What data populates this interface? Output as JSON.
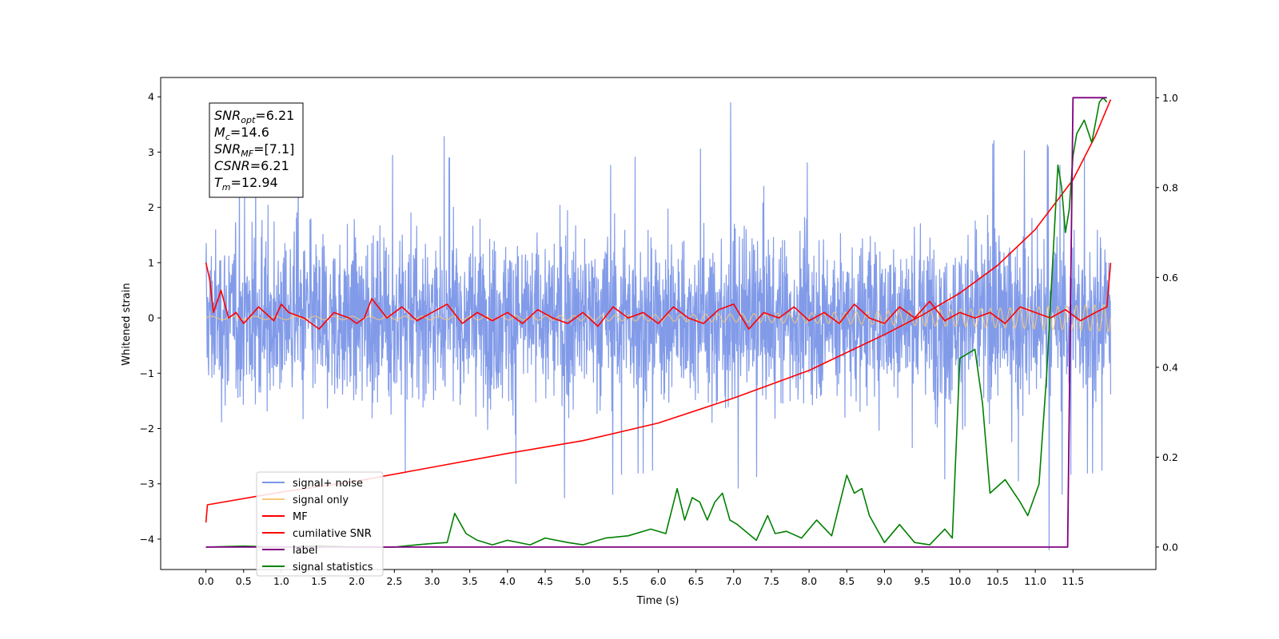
{
  "chart_data": {
    "type": "line",
    "xlabel": "Time (s)",
    "ylabel": "Whitened strain",
    "x_ticks": [
      0.0,
      0.5,
      1.0,
      1.5,
      2.0,
      2.5,
      3.0,
      3.5,
      4.0,
      4.5,
      5.0,
      5.5,
      6.0,
      6.5,
      7.0,
      7.5,
      8.0,
      8.5,
      9.0,
      9.5,
      10.0,
      10.5,
      11.0,
      11.5
    ],
    "xlim": [
      -0.6,
      12.6
    ],
    "y_ticks": [
      4,
      3,
      2,
      1,
      0,
      -1,
      -2,
      -3,
      -4
    ],
    "ylim": [
      -4.55,
      4.35
    ],
    "y2_ticks": [
      1.0,
      0.8,
      0.6,
      0.4,
      0.2,
      0.0
    ],
    "y2lim": [
      -0.05,
      1.045
    ],
    "info_box": {
      "lines": [
        {
          "base": "SNR",
          "sub": "opt",
          "value": "=6.21"
        },
        {
          "base": "M",
          "sub": "c",
          "value": "=14.6"
        },
        {
          "base": "SNR",
          "sub": "MF",
          "value": "=[7.1]"
        },
        {
          "base": "CSNR",
          "sub": "",
          "value": "=6.21"
        },
        {
          "base": "T",
          "sub": "m",
          "value": "=12.94"
        }
      ]
    },
    "legend": {
      "placement": "lower-left",
      "entries": [
        {
          "label": "signal+ noise",
          "color": "#7b96e8"
        },
        {
          "label": "signal only",
          "color": "#f5c879"
        },
        {
          "label": "MF",
          "color": "#ff0000"
        },
        {
          "label": "cumilative SNR",
          "color": "#ff0000"
        },
        {
          "label": "label",
          "color": "#800080"
        },
        {
          "label": "signal statistics",
          "color": "#008000"
        }
      ]
    },
    "series": [
      {
        "name": "signal+ noise",
        "axis": "left",
        "color": "#7b96e8",
        "x_range": [
          0.0,
          12.0
        ],
        "envelope_upper": 2.6,
        "envelope_lower": -2.6,
        "max": 3.9,
        "min": -4.2
      },
      {
        "name": "signal only",
        "axis": "left",
        "color": "#f5c879",
        "x_range": [
          0.0,
          12.0
        ],
        "amplitude_start": 0.03,
        "amplitude_end": 0.25
      },
      {
        "name": "MF",
        "axis": "left",
        "color": "#ff0000",
        "x": [
          0.0,
          0.05,
          0.1,
          0.2,
          0.3,
          0.4,
          0.5,
          0.7,
          0.9,
          1.0,
          1.1,
          1.3,
          1.5,
          1.7,
          1.9,
          2.0,
          2.1,
          2.2,
          2.4,
          2.6,
          2.8,
          3.0,
          3.2,
          3.4,
          3.6,
          3.8,
          4.0,
          4.2,
          4.4,
          4.6,
          4.8,
          5.0,
          5.2,
          5.4,
          5.6,
          5.8,
          6.0,
          6.2,
          6.4,
          6.6,
          6.8,
          7.0,
          7.2,
          7.4,
          7.6,
          7.8,
          8.0,
          8.2,
          8.4,
          8.6,
          8.8,
          9.0,
          9.2,
          9.4,
          9.6,
          9.8,
          10.0,
          10.2,
          10.4,
          10.6,
          10.8,
          11.0,
          11.2,
          11.4,
          11.6,
          11.8,
          11.95,
          12.0
        ],
        "y": [
          1.0,
          0.7,
          0.1,
          0.5,
          0.0,
          0.1,
          -0.1,
          0.2,
          -0.05,
          0.25,
          0.1,
          0.0,
          -0.2,
          0.1,
          0.0,
          -0.1,
          0.0,
          0.35,
          0.0,
          0.2,
          -0.05,
          0.1,
          0.25,
          -0.1,
          0.1,
          -0.05,
          0.1,
          -0.1,
          0.15,
          0.0,
          -0.1,
          0.1,
          -0.15,
          0.2,
          0.0,
          0.1,
          -0.1,
          0.2,
          0.0,
          -0.1,
          0.15,
          0.25,
          -0.2,
          0.1,
          0.0,
          0.2,
          -0.05,
          0.1,
          -0.1,
          0.25,
          0.0,
          -0.1,
          0.2,
          0.0,
          0.3,
          -0.05,
          0.1,
          0.0,
          0.1,
          -0.1,
          0.2,
          0.1,
          0.0,
          0.15,
          -0.05,
          0.1,
          0.2,
          1.0
        ]
      },
      {
        "name": "cumilative SNR",
        "axis": "left",
        "color": "#ff0000",
        "x": [
          0.0,
          0.02,
          1.0,
          2.0,
          3.0,
          4.0,
          5.0,
          6.0,
          7.0,
          8.0,
          9.0,
          9.5,
          10.0,
          10.5,
          11.0,
          11.5,
          11.8,
          12.0
        ],
        "y": [
          -3.7,
          -3.38,
          -3.15,
          -2.95,
          -2.7,
          -2.45,
          -2.22,
          -1.9,
          -1.45,
          -0.95,
          -0.3,
          0.05,
          0.45,
          0.95,
          1.6,
          2.5,
          3.3,
          3.95
        ]
      },
      {
        "name": "label",
        "axis": "right",
        "color": "#800080",
        "x": [
          0.0,
          11.43,
          11.5,
          11.95
        ],
        "y": [
          0.0,
          0.0,
          1.0,
          1.0
        ]
      },
      {
        "name": "signal statistics",
        "axis": "right",
        "color": "#008000",
        "x": [
          0.0,
          0.5,
          1.0,
          1.5,
          2.0,
          2.5,
          2.8,
          3.0,
          3.2,
          3.3,
          3.45,
          3.6,
          3.8,
          4.0,
          4.3,
          4.5,
          4.8,
          5.0,
          5.3,
          5.6,
          5.9,
          6.1,
          6.25,
          6.35,
          6.45,
          6.55,
          6.65,
          6.75,
          6.85,
          6.95,
          7.05,
          7.3,
          7.45,
          7.55,
          7.7,
          7.9,
          8.1,
          8.3,
          8.5,
          8.6,
          8.7,
          8.8,
          8.9,
          9.0,
          9.2,
          9.4,
          9.6,
          9.8,
          9.9,
          10.0,
          10.1,
          10.2,
          10.3,
          10.4,
          10.6,
          10.8,
          10.9,
          11.05,
          11.15,
          11.3,
          11.35,
          11.4,
          11.45,
          11.5,
          11.55,
          11.65,
          11.75,
          11.85,
          11.9,
          11.95
        ],
        "y": [
          0.0,
          0.002,
          0.0,
          0.003,
          0.0,
          0.0,
          0.005,
          0.008,
          0.01,
          0.075,
          0.03,
          0.015,
          0.005,
          0.015,
          0.005,
          0.02,
          0.01,
          0.005,
          0.02,
          0.025,
          0.04,
          0.03,
          0.13,
          0.06,
          0.11,
          0.1,
          0.06,
          0.1,
          0.12,
          0.06,
          0.05,
          0.015,
          0.07,
          0.03,
          0.035,
          0.02,
          0.06,
          0.025,
          0.16,
          0.12,
          0.13,
          0.07,
          0.04,
          0.01,
          0.05,
          0.01,
          0.005,
          0.04,
          0.02,
          0.42,
          0.43,
          0.44,
          0.32,
          0.12,
          0.15,
          0.1,
          0.07,
          0.14,
          0.38,
          0.85,
          0.8,
          0.7,
          0.75,
          0.87,
          0.92,
          0.95,
          0.9,
          0.99,
          1.0,
          0.99
        ]
      }
    ]
  }
}
